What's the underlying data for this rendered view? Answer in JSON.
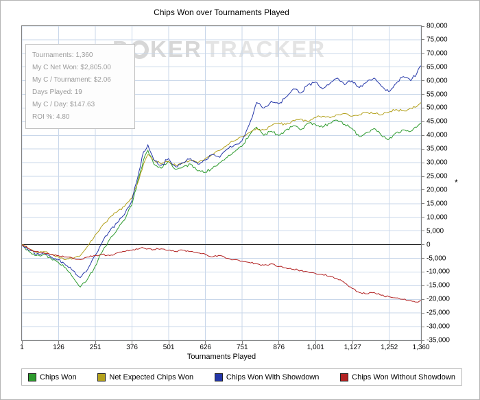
{
  "watermark": {
    "p1": "P",
    "p2": "KER",
    "p3": "TRACKER"
  },
  "stats": {
    "lines": [
      "Tournaments: 1,360",
      "My C Net Won: $2,805.00",
      "My C / Tournament: $2.06",
      "Days Played: 19",
      "My C / Day: $147.63",
      "ROI %: 4.80"
    ]
  },
  "colors": {
    "grid": "#c9d7ea",
    "zero_line": "#1a1a1a",
    "plot_border": "#7f7f7f",
    "watermark": "#d7d7d7"
  },
  "chart_data": {
    "type": "line",
    "title": "Chips Won over Tournaments Played",
    "xlabel": "Tournaments Played",
    "ylabel": "*",
    "grid": true,
    "legend_position": "bottom",
    "xlim": [
      1,
      1360
    ],
    "ylim": [
      -35000,
      80000
    ],
    "x_ticks": [
      1,
      126,
      251,
      376,
      501,
      626,
      751,
      876,
      1001,
      1127,
      1252,
      1360
    ],
    "x_tick_labels": [
      "1",
      "126",
      "251",
      "376",
      "501",
      "626",
      "751",
      "876",
      "1,001",
      "1,127",
      "1,252",
      "1,360"
    ],
    "y_ticks": [
      80000,
      75000,
      70000,
      65000,
      60000,
      55000,
      50000,
      45000,
      40000,
      35000,
      30000,
      25000,
      20000,
      15000,
      10000,
      5000,
      0,
      -5000,
      -10000,
      -15000,
      -20000,
      -25000,
      -30000,
      -35000
    ],
    "x": [
      1,
      25,
      50,
      75,
      100,
      125,
      150,
      175,
      200,
      225,
      250,
      275,
      300,
      325,
      350,
      375,
      400,
      415,
      430,
      450,
      475,
      500,
      525,
      550,
      575,
      600,
      625,
      650,
      675,
      700,
      725,
      750,
      775,
      800,
      825,
      850,
      875,
      900,
      925,
      950,
      975,
      1000,
      1025,
      1050,
      1075,
      1100,
      1125,
      1150,
      1175,
      1200,
      1225,
      1250,
      1275,
      1300,
      1325,
      1345,
      1360
    ],
    "series": [
      {
        "name": "Chips Won",
        "color": "#2e9b2e",
        "values": [
          0,
          -2500,
          -4000,
          -3500,
          -5000,
          -6500,
          -8500,
          -12000,
          -15500,
          -12500,
          -8000,
          -2500,
          2000,
          5500,
          9000,
          14500,
          25000,
          31000,
          34500,
          29500,
          28000,
          30500,
          27500,
          28500,
          29500,
          27000,
          26500,
          28000,
          30000,
          32000,
          34000,
          36000,
          40000,
          43000,
          40000,
          41500,
          40000,
          42000,
          43500,
          42000,
          44500,
          44000,
          43000,
          44500,
          45500,
          44000,
          42500,
          39500,
          41000,
          42500,
          40000,
          38500,
          41000,
          42000,
          41500,
          43000,
          44500
        ]
      },
      {
        "name": "Net Expected Chips Won",
        "color": "#b3a11c",
        "values": [
          0,
          -1500,
          -3000,
          -2500,
          -3500,
          -4500,
          -5500,
          -5000,
          -4000,
          -500,
          3500,
          7000,
          10000,
          12000,
          14000,
          17000,
          24000,
          29500,
          33000,
          31000,
          29500,
          30500,
          29000,
          30000,
          31000,
          30000,
          31500,
          33000,
          34500,
          36500,
          38000,
          39500,
          41000,
          42500,
          42000,
          43500,
          44500,
          44000,
          45500,
          46000,
          45000,
          46500,
          47000,
          46500,
          47500,
          48000,
          47000,
          47500,
          48500,
          48000,
          47500,
          48500,
          49500,
          49000,
          50000,
          50500,
          52000
        ]
      },
      {
        "name": "Chips Won With Showdown",
        "color": "#2436a8",
        "values": [
          0,
          -2000,
          -3500,
          -3000,
          -4500,
          -5500,
          -7500,
          -9500,
          -12000,
          -9000,
          -4000,
          1000,
          5000,
          8000,
          11000,
          16000,
          27000,
          34000,
          36500,
          31000,
          29000,
          31500,
          28500,
          30000,
          31500,
          29500,
          31000,
          33000,
          32000,
          35000,
          36500,
          38000,
          44000,
          52000,
          50000,
          52500,
          51500,
          54000,
          57000,
          55500,
          58500,
          59500,
          57000,
          59000,
          61000,
          58500,
          60000,
          57500,
          59500,
          61000,
          58000,
          56000,
          59000,
          61500,
          60000,
          62500,
          65500
        ]
      },
      {
        "name": "Chips Won Without Showdown",
        "color": "#b22222",
        "values": [
          0,
          -1500,
          -2500,
          -3000,
          -3500,
          -4000,
          -4500,
          -5000,
          -5500,
          -4500,
          -4000,
          -3500,
          -4000,
          -3000,
          -2500,
          -2000,
          -1500,
          -1200,
          -1500,
          -1800,
          -1500,
          -2000,
          -2500,
          -2000,
          -2500,
          -3000,
          -3500,
          -4500,
          -4000,
          -5000,
          -5500,
          -6000,
          -6500,
          -7000,
          -7500,
          -7000,
          -8000,
          -8500,
          -9000,
          -9500,
          -10000,
          -10500,
          -11000,
          -11500,
          -12500,
          -14000,
          -16000,
          -17500,
          -18000,
          -17500,
          -18500,
          -19000,
          -19500,
          -20000,
          -20500,
          -21000,
          -20500
        ]
      }
    ]
  }
}
